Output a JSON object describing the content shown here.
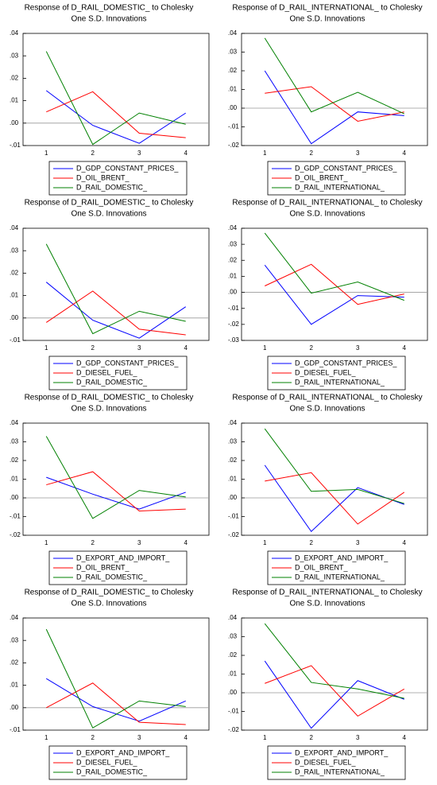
{
  "chart_data": [
    {
      "type": "line",
      "title": "Response of D_RAIL_DOMESTIC_ to Cholesky",
      "subtitle": "One S.D. Innovations",
      "categories": [
        "1",
        "2",
        "3",
        "4"
      ],
      "ylim": [
        -0.01,
        0.04
      ],
      "yticks": [
        {
          "value": -0.01,
          "label": "-.01"
        },
        {
          "value": 0,
          "label": ".00"
        },
        {
          "value": 0.01,
          "label": ".01"
        },
        {
          "value": 0.02,
          "label": ".02"
        },
        {
          "value": 0.03,
          "label": ".03"
        },
        {
          "value": 0.04,
          "label": ".04"
        }
      ],
      "series": [
        {
          "name": "D_GDP_CONSTANT_PRICES_",
          "color": "#0000ff",
          "values": [
            0.0145,
            -0.001,
            -0.009,
            0.0045
          ]
        },
        {
          "name": "D_OIL_BRENT_",
          "color": "#ff0000",
          "values": [
            0.005,
            0.014,
            -0.0045,
            -0.0065
          ]
        },
        {
          "name": "D_RAIL_DOMESTIC_",
          "color": "#008000",
          "values": [
            0.032,
            -0.0095,
            0.0045,
            -0.0005
          ]
        }
      ]
    },
    {
      "type": "line",
      "title": "Response of D_RAIL_INTERNATIONAL_ to Cholesky",
      "subtitle": "One S.D. Innovations",
      "categories": [
        "1",
        "2",
        "3",
        "4"
      ],
      "ylim": [
        -0.02,
        0.04
      ],
      "yticks": [
        {
          "value": -0.02,
          "label": "-.02"
        },
        {
          "value": -0.01,
          "label": "-.01"
        },
        {
          "value": 0,
          "label": ".00"
        },
        {
          "value": 0.01,
          "label": ".01"
        },
        {
          "value": 0.02,
          "label": ".02"
        },
        {
          "value": 0.03,
          "label": ".03"
        },
        {
          "value": 0.04,
          "label": ".04"
        }
      ],
      "series": [
        {
          "name": "D_GDP_CONSTANT_PRICES_",
          "color": "#0000ff",
          "values": [
            0.02,
            -0.019,
            -0.002,
            -0.004
          ]
        },
        {
          "name": "D_OIL_BRENT_",
          "color": "#ff0000",
          "values": [
            0.008,
            0.0115,
            -0.007,
            -0.002
          ]
        },
        {
          "name": "D_RAIL_INTERNATIONAL_",
          "color": "#008000",
          "values": [
            0.0375,
            -0.002,
            0.0085,
            -0.003
          ]
        }
      ]
    },
    {
      "type": "line",
      "title": "Response of D_RAIL_DOMESTIC_ to Cholesky",
      "subtitle": "One S.D. Innovations",
      "categories": [
        "1",
        "2",
        "3",
        "4"
      ],
      "ylim": [
        -0.01,
        0.04
      ],
      "yticks": [
        {
          "value": -0.01,
          "label": "-.01"
        },
        {
          "value": 0,
          "label": ".00"
        },
        {
          "value": 0.01,
          "label": ".01"
        },
        {
          "value": 0.02,
          "label": ".02"
        },
        {
          "value": 0.03,
          "label": ".03"
        },
        {
          "value": 0.04,
          "label": ".04"
        }
      ],
      "series": [
        {
          "name": "D_GDP_CONSTANT_PRICES_",
          "color": "#0000ff",
          "values": [
            0.016,
            -0.001,
            -0.009,
            0.005
          ]
        },
        {
          "name": "D_DIESEL_FUEL_",
          "color": "#ff0000",
          "values": [
            -0.002,
            0.012,
            -0.005,
            -0.0075
          ]
        },
        {
          "name": "D_RAIL_DOMESTIC_",
          "color": "#008000",
          "values": [
            0.033,
            -0.007,
            0.003,
            -0.0015
          ]
        }
      ]
    },
    {
      "type": "line",
      "title": "Response of D_RAIL_INTERNATIONAL_ to Cholesky",
      "subtitle": "One S.D. Innovations",
      "categories": [
        "1",
        "2",
        "3",
        "4"
      ],
      "ylim": [
        -0.03,
        0.04
      ],
      "yticks": [
        {
          "value": -0.03,
          "label": "-.03"
        },
        {
          "value": -0.02,
          "label": "-.02"
        },
        {
          "value": -0.01,
          "label": "-.01"
        },
        {
          "value": 0,
          "label": ".00"
        },
        {
          "value": 0.01,
          "label": ".01"
        },
        {
          "value": 0.02,
          "label": ".02"
        },
        {
          "value": 0.03,
          "label": ".03"
        },
        {
          "value": 0.04,
          "label": ".04"
        }
      ],
      "series": [
        {
          "name": "D_GDP_CONSTANT_PRICES_",
          "color": "#0000ff",
          "values": [
            0.017,
            -0.02,
            -0.002,
            -0.003
          ]
        },
        {
          "name": "D_DIESEL_FUEL_",
          "color": "#ff0000",
          "values": [
            0.004,
            0.0175,
            -0.0075,
            -0.001
          ]
        },
        {
          "name": "D_RAIL_INTERNATIONAL_",
          "color": "#008000",
          "values": [
            0.037,
            -0.0005,
            0.0065,
            -0.005
          ]
        }
      ]
    },
    {
      "type": "line",
      "title": "Response of D_RAIL_DOMESTIC_ to Cholesky",
      "subtitle": "One S.D. Innovations",
      "categories": [
        "1",
        "2",
        "3",
        "4"
      ],
      "ylim": [
        -0.02,
        0.04
      ],
      "yticks": [
        {
          "value": -0.02,
          "label": "-.02"
        },
        {
          "value": -0.01,
          "label": "-.01"
        },
        {
          "value": 0,
          "label": ".00"
        },
        {
          "value": 0.01,
          "label": ".01"
        },
        {
          "value": 0.02,
          "label": ".02"
        },
        {
          "value": 0.03,
          "label": ".03"
        },
        {
          "value": 0.04,
          "label": ".04"
        }
      ],
      "series": [
        {
          "name": "D_EXPORT_AND_IMPORT_",
          "color": "#0000ff",
          "values": [
            0.011,
            0.002,
            -0.006,
            0.003
          ]
        },
        {
          "name": "D_OIL_BRENT_",
          "color": "#ff0000",
          "values": [
            0.007,
            0.014,
            -0.007,
            -0.006
          ]
        },
        {
          "name": "D_RAIL_DOMESTIC_",
          "color": "#008000",
          "values": [
            0.033,
            -0.011,
            0.004,
            0.0005
          ]
        }
      ]
    },
    {
      "type": "line",
      "title": "Response of D_RAIL_INTERNATIONAL_ to Cholesky",
      "subtitle": "One S.D. Innovations",
      "categories": [
        "1",
        "2",
        "3",
        "4"
      ],
      "ylim": [
        -0.02,
        0.04
      ],
      "yticks": [
        {
          "value": -0.02,
          "label": "-.02"
        },
        {
          "value": -0.01,
          "label": "-.01"
        },
        {
          "value": 0,
          "label": ".00"
        },
        {
          "value": 0.01,
          "label": ".01"
        },
        {
          "value": 0.02,
          "label": ".02"
        },
        {
          "value": 0.03,
          "label": ".03"
        },
        {
          "value": 0.04,
          "label": ".04"
        }
      ],
      "series": [
        {
          "name": "D_EXPORT_AND_IMPORT_",
          "color": "#0000ff",
          "values": [
            0.0175,
            -0.018,
            0.0055,
            -0.0035
          ]
        },
        {
          "name": "D_OIL_BRENT_",
          "color": "#ff0000",
          "values": [
            0.009,
            0.0135,
            -0.014,
            0.003
          ]
        },
        {
          "name": "D_RAIL_INTERNATIONAL_",
          "color": "#008000",
          "values": [
            0.037,
            0.0035,
            0.0045,
            -0.003
          ]
        }
      ]
    },
    {
      "type": "line",
      "title": "Response of D_RAIL_DOMESTIC_ to Cholesky",
      "subtitle": "One S.D. Innovations",
      "categories": [
        "1",
        "2",
        "3",
        "4"
      ],
      "ylim": [
        -0.01,
        0.04
      ],
      "yticks": [
        {
          "value": -0.01,
          "label": "-.01"
        },
        {
          "value": 0,
          "label": ".00"
        },
        {
          "value": 0.01,
          "label": ".01"
        },
        {
          "value": 0.02,
          "label": ".02"
        },
        {
          "value": 0.03,
          "label": ".03"
        },
        {
          "value": 0.04,
          "label": ".04"
        }
      ],
      "series": [
        {
          "name": "D_EXPORT_AND_IMPORT_",
          "color": "#0000ff",
          "values": [
            0.013,
            0.0005,
            -0.006,
            0.003
          ]
        },
        {
          "name": "D_DIESEL_FUEL_",
          "color": "#ff0000",
          "values": [
            0.0,
            0.011,
            -0.0065,
            -0.0075
          ]
        },
        {
          "name": "D_RAIL_DOMESTIC_",
          "color": "#008000",
          "values": [
            0.035,
            -0.009,
            0.003,
            0.0005
          ]
        }
      ]
    },
    {
      "type": "line",
      "title": "Response of D_RAIL_INTERNATIONAL_ to Cholesky",
      "subtitle": "One S.D. Innovations",
      "categories": [
        "1",
        "2",
        "3",
        "4"
      ],
      "ylim": [
        -0.02,
        0.04
      ],
      "yticks": [
        {
          "value": -0.02,
          "label": "-.02"
        },
        {
          "value": -0.01,
          "label": "-.01"
        },
        {
          "value": 0,
          "label": ".00"
        },
        {
          "value": 0.01,
          "label": ".01"
        },
        {
          "value": 0.02,
          "label": ".02"
        },
        {
          "value": 0.03,
          "label": ".03"
        },
        {
          "value": 0.04,
          "label": ".04"
        }
      ],
      "series": [
        {
          "name": "D_EXPORT_AND_IMPORT_",
          "color": "#0000ff",
          "values": [
            0.017,
            -0.019,
            0.0065,
            -0.0035
          ]
        },
        {
          "name": "D_DIESEL_FUEL_",
          "color": "#ff0000",
          "values": [
            0.005,
            0.0145,
            -0.0125,
            0.002
          ]
        },
        {
          "name": "D_RAIL_INTERNATIONAL_",
          "color": "#008000",
          "values": [
            0.037,
            0.0055,
            0.002,
            -0.003
          ]
        }
      ]
    }
  ]
}
